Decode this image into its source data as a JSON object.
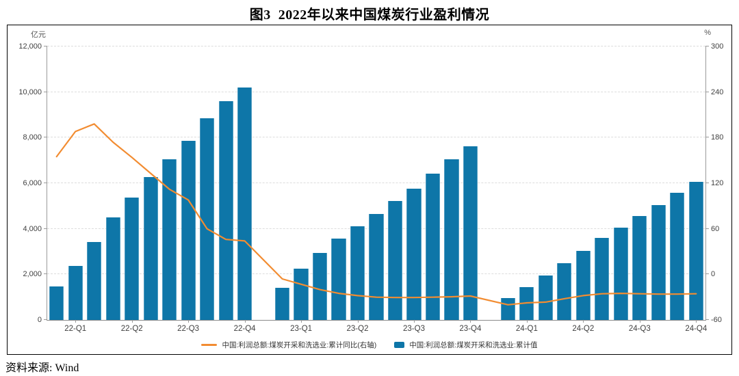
{
  "title": "图3  2022年以来中国煤炭行业盈利情况",
  "source_note": "资料来源: Wind",
  "chart_data": {
    "type": "bar+line",
    "title": "图3 2022年以来中国煤炭行业盈利情况",
    "grid": "horizontal-dashed",
    "slots": 35,
    "left_axis": {
      "unit": "亿元",
      "min": 0,
      "max": 12000,
      "step": 2000,
      "tick_labels": [
        "0",
        "2,000",
        "4,000",
        "6,000",
        "8,000",
        "10,000",
        "12,000"
      ]
    },
    "right_axis": {
      "unit": "%",
      "min": -60,
      "max": 300,
      "step": 60,
      "tick_labels": [
        "-60",
        "0",
        "60",
        "120",
        "180",
        "240",
        "300"
      ]
    },
    "x_tick_labels": [
      "22-Q1",
      "22-Q2",
      "22-Q3",
      "22-Q4",
      "23-Q1",
      "23-Q2",
      "23-Q3",
      "23-Q4",
      "24-Q1",
      "24-Q2",
      "24-Q3",
      "24-Q4"
    ],
    "x_ticks": [
      {
        "label": "22-Q1",
        "slot": 1
      },
      {
        "label": "22-Q2",
        "slot": 4
      },
      {
        "label": "22-Q3",
        "slot": 7
      },
      {
        "label": "22-Q4",
        "slot": 10
      },
      {
        "label": "23-Q1",
        "slot": 13
      },
      {
        "label": "23-Q2",
        "slot": 16
      },
      {
        "label": "23-Q3",
        "slot": 19
      },
      {
        "label": "23-Q4",
        "slot": 22
      },
      {
        "label": "24-Q1",
        "slot": 25
      },
      {
        "label": "24-Q2",
        "slot": 28
      },
      {
        "label": "24-Q3",
        "slot": 31
      },
      {
        "label": "24-Q4",
        "slot": 34
      }
    ],
    "months": [
      "2022-02",
      "2022-03",
      "2022-04",
      "2022-05",
      "2022-06",
      "2022-07",
      "2022-08",
      "2022-09",
      "2022-10",
      "2022-11",
      "2022-12",
      "2023-02",
      "2023-03",
      "2023-04",
      "2023-05",
      "2023-06",
      "2023-07",
      "2023-08",
      "2023-09",
      "2023-10",
      "2023-11",
      "2023-12",
      "2024-02",
      "2024-03",
      "2024-04",
      "2024-05",
      "2024-06",
      "2024-07",
      "2024-08",
      "2024-09",
      "2024-10",
      "2024-11",
      "2024-12"
    ],
    "series": [
      {
        "name": "中国:利润总额:煤炭开采和洗选业:累计值",
        "type": "bar",
        "axis": "left",
        "color": "#0E76A8",
        "values": [
          1480,
          2357,
          3432,
          4505,
          5375,
          6282,
          7064,
          7856,
          8858,
          9598,
          10202,
          1403,
          2244,
          2936,
          3556,
          4103,
          4663,
          5213,
          5774,
          6408,
          7054,
          7629,
          963,
          1443,
          1946,
          2480,
          3032,
          3605,
          4065,
          4559,
          5030,
          5589,
          6046
        ]
      },
      {
        "name": "中国:利润总额:煤炭开采和洗选业:累计同比(右轴)",
        "type": "line",
        "axis": "right",
        "color": "#F28C31",
        "values": [
          155,
          188,
          198,
          174,
          154,
          133,
          112,
          98,
          60,
          46,
          44,
          -6,
          -13,
          -20,
          -25,
          -28,
          -30,
          -30.5,
          -30.5,
          -30,
          -29.5,
          -28.5,
          -40,
          -37.5,
          -36.5,
          -32,
          -28,
          -25.5,
          -25,
          -25.5,
          -26,
          -26,
          -25.5
        ]
      }
    ],
    "legend_position": "bottom-center",
    "legend": [
      {
        "swatch": "line",
        "color": "#F28C31",
        "label": "中国:利润总额:煤炭开采和洗选业:累计同比(右轴)"
      },
      {
        "swatch": "bar",
        "color": "#0E76A8",
        "label": "中国:利润总额:煤炭开采和洗选业:累计值"
      }
    ]
  }
}
